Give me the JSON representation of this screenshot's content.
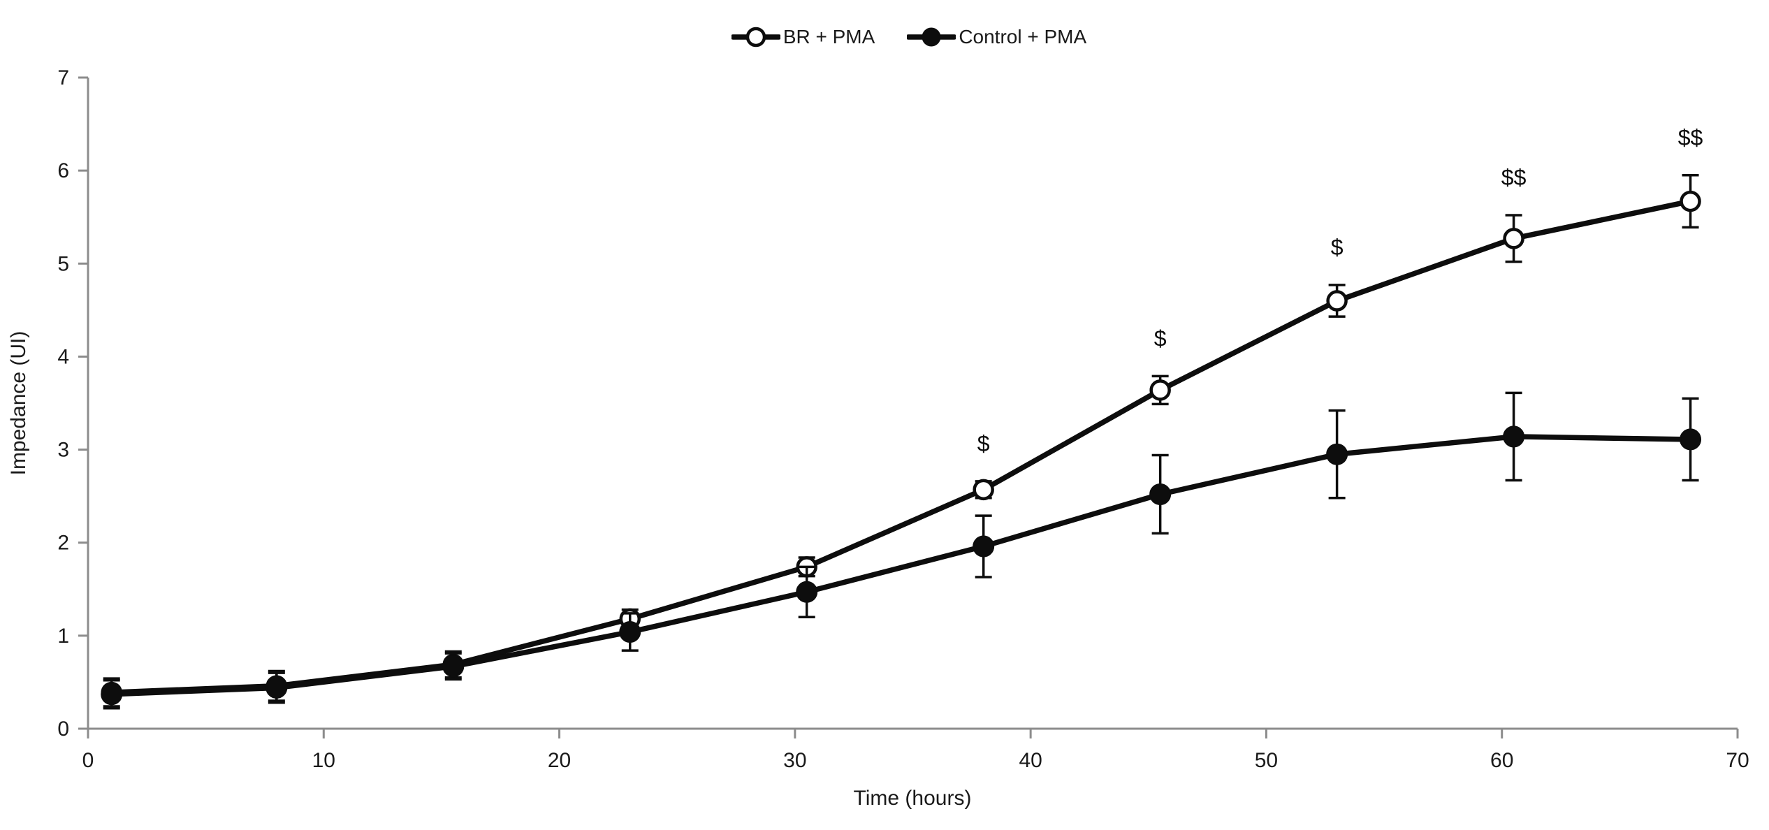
{
  "chart_data": {
    "type": "line",
    "title": "",
    "xlabel": "Time (hours)",
    "ylabel": "Impedance (UI)",
    "xlim": [
      0,
      70
    ],
    "ylim": [
      0,
      7
    ],
    "x_ticks": [
      0,
      10,
      20,
      30,
      40,
      50,
      60,
      70
    ],
    "y_ticks": [
      0,
      1,
      2,
      3,
      4,
      5,
      6,
      7
    ],
    "grid": false,
    "legend_position": "top-center",
    "x": [
      1,
      8,
      15.5,
      23,
      30.5,
      38,
      45.5,
      53,
      60.5,
      68
    ],
    "series": [
      {
        "name": "BR + PMA",
        "marker": "open-circle",
        "values": [
          0.39,
          0.46,
          0.69,
          1.18,
          1.74,
          2.57,
          3.64,
          4.6,
          5.27,
          5.67
        ],
        "errors": [
          0.15,
          0.16,
          0.14,
          0.1,
          0.1,
          0.09,
          0.15,
          0.17,
          0.25,
          0.28
        ]
      },
      {
        "name": "Control + PMA",
        "marker": "filled-circle",
        "values": [
          0.37,
          0.44,
          0.67,
          1.04,
          1.47,
          1.96,
          2.52,
          2.95,
          3.14,
          3.11
        ],
        "errors": [
          0.15,
          0.16,
          0.14,
          0.2,
          0.27,
          0.33,
          0.42,
          0.47,
          0.47,
          0.44
        ]
      }
    ],
    "annotations": [
      {
        "series": "BR + PMA",
        "x": 38,
        "label": "$"
      },
      {
        "series": "BR + PMA",
        "x": 45.5,
        "label": "$"
      },
      {
        "series": "BR + PMA",
        "x": 53,
        "label": "$"
      },
      {
        "series": "BR + PMA",
        "x": 60.5,
        "label": "$$"
      },
      {
        "series": "BR + PMA",
        "x": 68,
        "label": "$$"
      }
    ],
    "colors": {
      "series": "#0d0d0d",
      "axis": "#8c8c8c",
      "text": "#1a1a1a",
      "background": "#ffffff"
    }
  }
}
